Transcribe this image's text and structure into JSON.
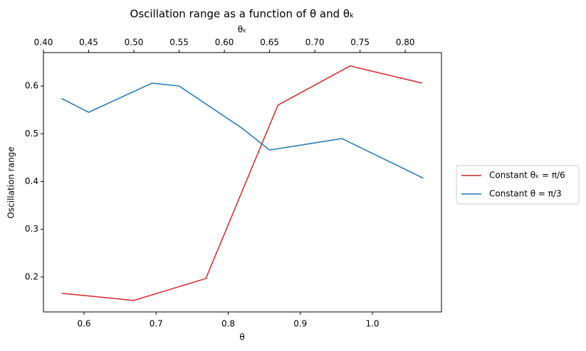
{
  "chart_data": {
    "type": "line",
    "title": "Oscillation range as a function of θ and θₖ",
    "xlabel": "θ",
    "x2label": "θₖ",
    "ylabel": "Oscillation range",
    "xlim": [
      0.5437,
      1.0958
    ],
    "xticks": [
      0.6,
      0.7,
      0.8,
      0.9,
      {
        "value": 1.0,
        "label": "1.0"
      }
    ],
    "x2lim": [
      0.4,
      0.84
    ],
    "x2ticks": [
      {
        "value": 0.4,
        "label": "0.40"
      },
      0.45,
      {
        "value": 0.5,
        "label": "0.50"
      },
      0.55,
      {
        "value": 0.6,
        "label": "0.60"
      },
      0.65,
      {
        "value": 0.7,
        "label": "0.70"
      },
      0.75,
      {
        "value": 0.8,
        "label": "0.80"
      }
    ],
    "ylim": [
      0.127,
      0.67
    ],
    "yticks": [
      0.2,
      0.3,
      0.4,
      0.5,
      0.6
    ],
    "legend": "outside-right",
    "series": [
      {
        "name": "Constant θₖ = π/6",
        "color": "#d62728",
        "axis": "x",
        "x": [
          0.569,
          0.669,
          0.769,
          0.869,
          0.969,
          1.069
        ],
        "values": [
          0.166,
          0.151,
          0.197,
          0.56,
          0.642,
          0.606
        ]
      },
      {
        "name": "Constant θ = π/3",
        "color": "#1f77b4",
        "axis": "x2",
        "x": [
          0.42,
          0.45,
          0.52,
          0.55,
          0.62,
          0.65,
          0.73,
          0.82
        ],
        "values": [
          0.574,
          0.545,
          0.606,
          0.6,
          0.511,
          0.466,
          0.49,
          0.407
        ]
      }
    ]
  }
}
